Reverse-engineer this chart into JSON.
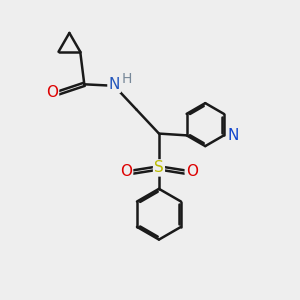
{
  "bg_color": "#eeeeee",
  "bond_color": "#1a1a1a",
  "bond_width": 1.8,
  "atom_colors": {
    "N_py": "#1144cc",
    "N_amide": "#2255bb",
    "O": "#dd0000",
    "S": "#bbbb00",
    "H": "#778899",
    "C": "#1a1a1a"
  },
  "font_size": 10,
  "fig_size": [
    3.0,
    3.0
  ],
  "dpi": 100
}
